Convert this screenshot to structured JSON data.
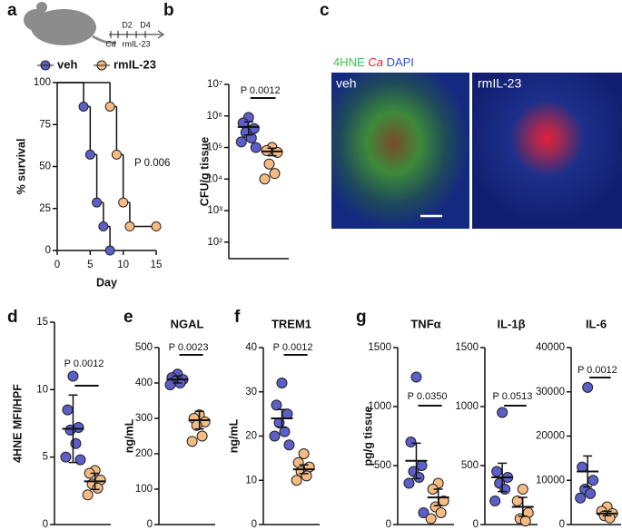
{
  "chart_data": [
    {
      "type": "survival",
      "panel": "a",
      "schematic": {
        "labels": [
          "D2",
          "D4",
          "Ca",
          "rmIL-23"
        ]
      },
      "xlabel": "Day",
      "ylabel": "% survival",
      "xlim": [
        0,
        15
      ],
      "xticks": [
        0,
        5,
        10,
        15
      ],
      "ylim": [
        0,
        100
      ],
      "yticks": [
        0,
        25,
        50,
        75,
        100
      ],
      "annotation": "P 0.006",
      "series": [
        {
          "name": "veh",
          "color": "#5b5fc7",
          "x": [
            0,
            4,
            5,
            6,
            7,
            8
          ],
          "values": [
            100,
            85.7,
            57.1,
            28.6,
            14.3,
            0
          ]
        },
        {
          "name": "rmIL-23",
          "color": "#f6bb82",
          "x": [
            0,
            8,
            9,
            10,
            11,
            15
          ],
          "values": [
            100,
            85.7,
            57.1,
            28.6,
            14.3,
            14.3
          ]
        }
      ]
    },
    {
      "type": "dot",
      "panel": "b",
      "ylabel": "CFU/g tissue",
      "log": true,
      "ylim": [
        30,
        10000000
      ],
      "yticks": [
        {
          "value": 100,
          "label": "10²"
        },
        {
          "value": 1000,
          "label": "10³"
        },
        {
          "value": 10000,
          "label": "10⁴"
        },
        {
          "value": 100000,
          "label": "10⁵"
        },
        {
          "value": 1000000,
          "label": "10⁶"
        },
        {
          "value": 10000000,
          "label": "10⁷"
        }
      ],
      "annotation": "P 0.0012",
      "series": [
        {
          "color": "#5b5fc7",
          "values": [
            900000,
            600000,
            400000,
            300000,
            200000,
            150000,
            100000
          ],
          "mean": 450000,
          "error": 200000
        },
        {
          "color": "#f6bb82",
          "values": [
            100000,
            80000,
            70000,
            30000,
            15000,
            10000
          ],
          "mean": 75000,
          "error": 20000
        }
      ]
    },
    {
      "type": "image",
      "panel": "c",
      "legend": [
        "4HNE",
        "Ca",
        "DAPI"
      ],
      "colors": [
        "#3ec24a",
        "#e8202a",
        "#2e4fd8"
      ],
      "conditions": [
        "veh",
        "rmIL-23"
      ]
    },
    {
      "type": "dot",
      "panel": "d",
      "ylabel": "4HNE MFI/HPF",
      "ylim": [
        0,
        15
      ],
      "yticks": [
        0,
        5,
        10,
        15
      ],
      "annotation": "P 0.0012",
      "series": [
        {
          "color": "#5b5fc7",
          "values": [
            11,
            8.5,
            7.2,
            7,
            6,
            5,
            4.8
          ],
          "mean": 7.1,
          "error": 2.5
        },
        {
          "color": "#f6bb82",
          "values": [
            4,
            3.8,
            3.3,
            3,
            2.7,
            2.2
          ],
          "mean": 3.2,
          "error": 0.6
        }
      ]
    },
    {
      "type": "dot",
      "panel": "e",
      "title": "NGAL",
      "ylabel": "ng/mL",
      "ylim": [
        0,
        500
      ],
      "yticks": [
        0,
        100,
        200,
        300,
        400,
        500
      ],
      "annotation": "P 0.0023",
      "series": [
        {
          "color": "#5b5fc7",
          "values": [
            425,
            415,
            410,
            405,
            400,
            395
          ],
          "mean": 410,
          "error": 10
        },
        {
          "color": "#f6bb82",
          "values": [
            310,
            300,
            290,
            280,
            250,
            235
          ],
          "mean": 295,
          "error": 25
        }
      ]
    },
    {
      "type": "dot",
      "panel": "f",
      "title": "TREM1",
      "ylabel": "ng/mL",
      "ylim": [
        0,
        40
      ],
      "yticks": [
        0,
        10,
        20,
        30,
        40
      ],
      "annotation": "P 0.0012",
      "series": [
        {
          "color": "#5b5fc7",
          "values": [
            32,
            27,
            25,
            23,
            21,
            20,
            18
          ],
          "mean": 24,
          "error": 2
        },
        {
          "color": "#f6bb82",
          "values": [
            16,
            14,
            13,
            12,
            11,
            10
          ],
          "mean": 12.5,
          "error": 1
        }
      ]
    },
    {
      "type": "dot",
      "panel": "g",
      "title": "TNFα",
      "ylabel": "pg/g tissue",
      "ylim": [
        0,
        1500
      ],
      "yticks": [
        0,
        500,
        1000,
        1500
      ],
      "annotation": "P 0.0350",
      "series": [
        {
          "color": "#5b5fc7",
          "values": [
            1250,
            700,
            500,
            450,
            400,
            350,
            100
          ],
          "mean": 540,
          "error": 150
        },
        {
          "color": "#f6bb82",
          "values": [
            350,
            300,
            200,
            150,
            100,
            50
          ],
          "mean": 230,
          "error": 70
        }
      ]
    },
    {
      "type": "dot",
      "title": "IL-1β",
      "ylim": [
        0,
        1500
      ],
      "yticks": [
        0,
        500,
        1000,
        1500
      ],
      "annotation": "P 0.0513",
      "series": [
        {
          "color": "#5b5fc7",
          "values": [
            950,
            450,
            400,
            350,
            300,
            200
          ],
          "mean": 400,
          "error": 120
        },
        {
          "color": "#f6bb82",
          "values": [
            300,
            200,
            100,
            50,
            30
          ],
          "mean": 150,
          "error": 80
        }
      ]
    },
    {
      "type": "dot",
      "title": "IL-6",
      "ylim": [
        0,
        40000
      ],
      "yticks": [
        0,
        10000,
        20000,
        30000,
        40000
      ],
      "annotation": "P 0.0012",
      "series": [
        {
          "color": "#5b5fc7",
          "values": [
            31000,
            13000,
            10000,
            8000,
            7000,
            6000
          ],
          "mean": 12000,
          "error": 3500
        },
        {
          "color": "#f6bb82",
          "values": [
            4000,
            3000,
            2500,
            2000,
            1500
          ],
          "mean": 2500,
          "error": 500
        }
      ]
    }
  ]
}
